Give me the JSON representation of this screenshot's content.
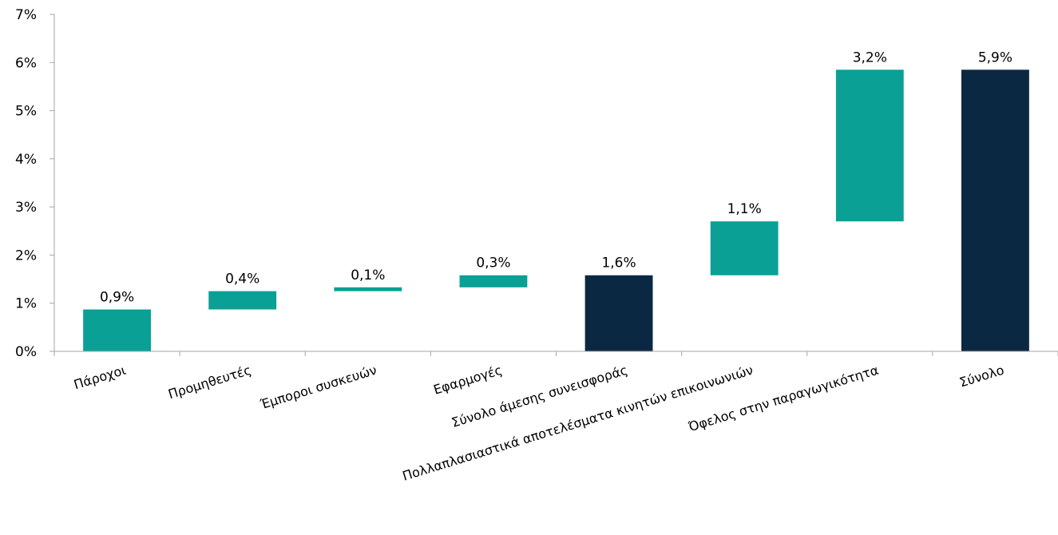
{
  "chart_data": {
    "type": "bar",
    "subtype": "waterfall",
    "title": "",
    "xlabel": "",
    "ylabel": "",
    "ylim": [
      0,
      7
    ],
    "y_ticks": [
      "0%",
      "1%",
      "2%",
      "3%",
      "4%",
      "5%",
      "6%",
      "7%"
    ],
    "grid": false,
    "legend": "none",
    "categories": [
      "Πάροχοι",
      "Προμηθευτές",
      "Έμποροι συσκευών",
      "Εφαρμογές",
      "Σύνολο άμεσης συνεισφοράς",
      "Πολλαπλασιαστικά αποτελέσματα κινητών επικοινωνιών",
      "Όφελος στην παραγωγικότητα",
      "Σύνολο"
    ],
    "values": [
      0.87,
      0.38,
      0.08,
      0.25,
      1.58,
      1.12,
      3.15,
      5.85
    ],
    "bar_start": [
      0,
      0.87,
      1.25,
      1.33,
      0,
      1.58,
      2.7,
      0
    ],
    "bar_end": [
      0.87,
      1.25,
      1.33,
      1.58,
      1.58,
      2.7,
      5.85,
      5.85
    ],
    "is_total": [
      false,
      false,
      false,
      false,
      true,
      false,
      false,
      true
    ],
    "data_labels": [
      "0,9%",
      "0,4%",
      "0,1%",
      "0,3%",
      "1,6%",
      "1,1%",
      "3,2%",
      "5,9%"
    ],
    "colors": {
      "increment": "#0aa095",
      "total": "#0b2842"
    }
  }
}
